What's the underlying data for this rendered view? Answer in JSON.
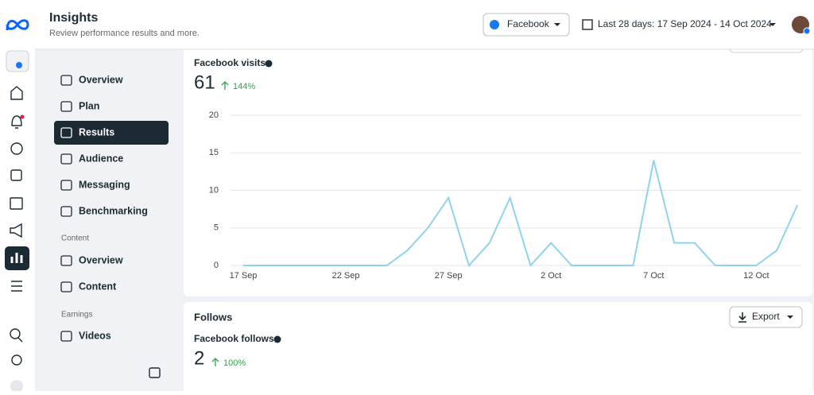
{
  "header": {
    "title": "Insights",
    "subtitle": "Review performance results and more.",
    "platform": "Facebook",
    "date_range": "Last 28 days: 17 Sep 2024 - 14 Oct 2024"
  },
  "nav": {
    "items": [
      "Overview",
      "Plan",
      "Results",
      "Audience",
      "Messaging",
      "Benchmarking"
    ],
    "sections": [
      {
        "label": "Content",
        "items": [
          "Overview",
          "Content"
        ]
      },
      {
        "label": "Earnings",
        "items": [
          "Videos"
        ]
      }
    ]
  },
  "visits": {
    "label": "Facebook visits",
    "total": 61,
    "change": "144%"
  },
  "follows": {
    "title": "Follows",
    "export": "Export",
    "label": "Facebook follows",
    "total": 2,
    "change": "100%"
  },
  "chart_data": {
    "type": "line",
    "categories": [
      "17 Sep",
      null,
      null,
      null,
      null,
      "22 Sep",
      null,
      null,
      null,
      null,
      "27 Sep",
      null,
      null,
      null,
      null,
      "2 Oct",
      null,
      null,
      null,
      null,
      "7 Oct",
      null,
      null,
      null,
      null,
      "12 Oct",
      null,
      null
    ],
    "values": [
      0,
      0,
      0,
      0,
      0,
      0,
      0,
      0,
      2,
      5,
      9,
      0,
      3,
      9,
      0,
      3,
      0,
      0,
      0,
      0,
      14,
      3,
      3,
      0,
      0,
      0,
      2,
      8
    ],
    "color": "#8fd3f0",
    "ylim": [
      0,
      20
    ],
    "yticks": [
      0,
      5,
      10,
      15,
      20
    ],
    "grid": true
  }
}
